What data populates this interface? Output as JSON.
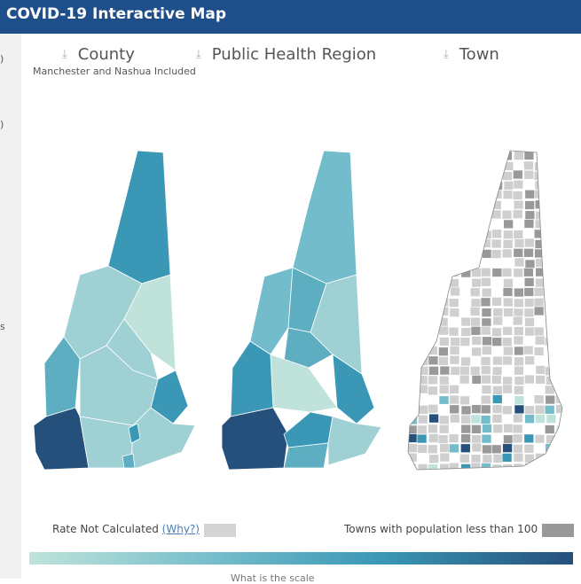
{
  "header": {
    "title": "COVID-19 Interactive Map"
  },
  "left_fragments": [
    ")",
    ")",
    "s"
  ],
  "tabs": [
    {
      "label": "County"
    },
    {
      "label": "Public Health Region"
    },
    {
      "label": "Town"
    }
  ],
  "county_note": "Manchester and Nashua Included",
  "legend": {
    "rate_not_calculated": "Rate Not Calculated",
    "why_link": "(Why?)",
    "small_towns": "Towns with population less than 100",
    "not_calculated_color": "#d4d4d4",
    "small_towns_color": "#999999"
  },
  "scale_colors": [
    "#bfe3da",
    "#73bccb",
    "#3a97b5",
    "#25507c"
  ],
  "bottom_partial": "What is the scale"
}
